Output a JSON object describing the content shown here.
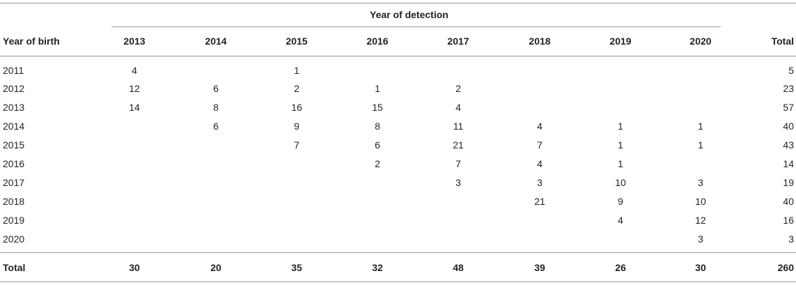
{
  "table": {
    "group_header": "Year of detection",
    "row_header": "Year of birth",
    "columns": [
      "2013",
      "2014",
      "2015",
      "2016",
      "2017",
      "2018",
      "2019",
      "2020"
    ],
    "total_header": "Total",
    "rows": [
      {
        "label": "2011",
        "values": [
          "4",
          "",
          "1",
          "",
          "",
          "",
          "",
          ""
        ],
        "total": "5"
      },
      {
        "label": "2012",
        "values": [
          "12",
          "6",
          "2",
          "1",
          "2",
          "",
          "",
          ""
        ],
        "total": "23"
      },
      {
        "label": "2013",
        "values": [
          "14",
          "8",
          "16",
          "15",
          "4",
          "",
          "",
          ""
        ],
        "total": "57"
      },
      {
        "label": "2014",
        "values": [
          "",
          "6",
          "9",
          "8",
          "11",
          "4",
          "1",
          "1"
        ],
        "total": "40"
      },
      {
        "label": "2015",
        "values": [
          "",
          "",
          "7",
          "6",
          "21",
          "7",
          "1",
          "1"
        ],
        "total": "43"
      },
      {
        "label": "2016",
        "values": [
          "",
          "",
          "",
          "2",
          "7",
          "4",
          "1",
          ""
        ],
        "total": "14"
      },
      {
        "label": "2017",
        "values": [
          "",
          "",
          "",
          "",
          "3",
          "3",
          "10",
          "3"
        ],
        "total": "19"
      },
      {
        "label": "2018",
        "values": [
          "",
          "",
          "",
          "",
          "",
          "21",
          "9",
          "10"
        ],
        "total": "40"
      },
      {
        "label": "2019",
        "values": [
          "",
          "",
          "",
          "",
          "",
          "",
          "4",
          "12"
        ],
        "total": "16"
      },
      {
        "label": "2020",
        "values": [
          "",
          "",
          "",
          "",
          "",
          "",
          "",
          "3"
        ],
        "total": "3"
      }
    ],
    "totals": {
      "label": "Total",
      "values": [
        "30",
        "20",
        "35",
        "32",
        "48",
        "39",
        "26",
        "30"
      ],
      "total": "260"
    }
  }
}
